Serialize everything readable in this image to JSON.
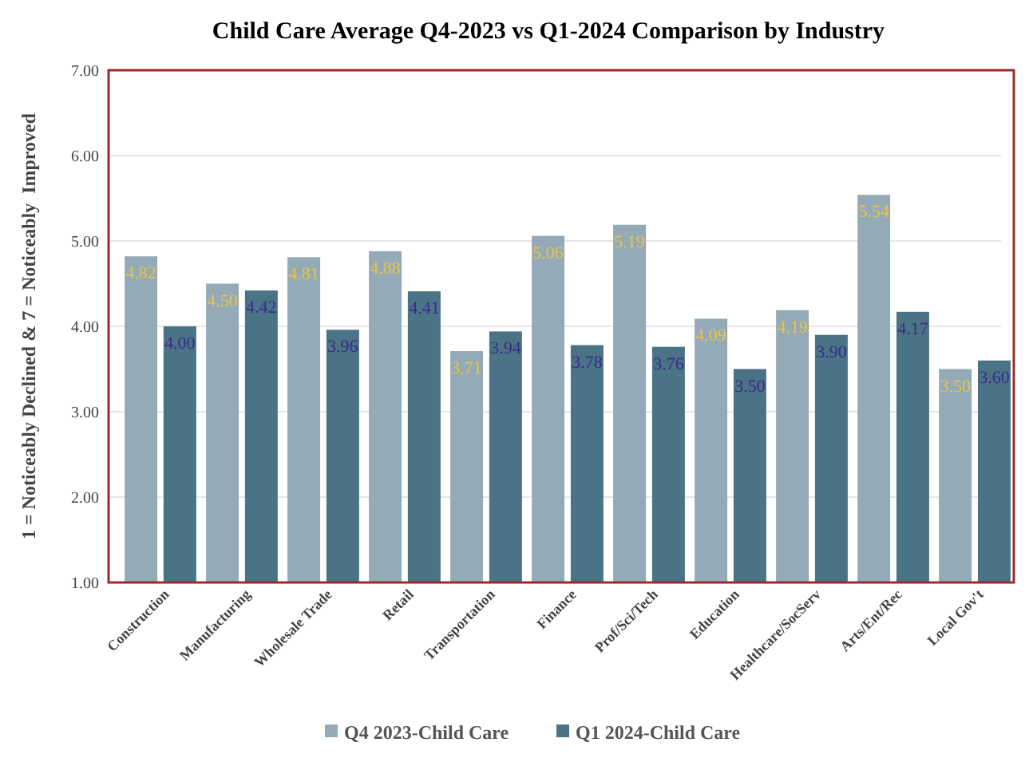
{
  "chart_data": {
    "type": "bar",
    "title": "Child Care Average Q4-2023 vs Q1-2024 Comparison by Industry",
    "ylabel": "1 = Noticeably Declined & 7 = Noticeably  Improved",
    "categories": [
      "Construction",
      "Manufacturing",
      "Wholesale Trade",
      "Retail",
      "Transportation",
      "Finance",
      "Prof/Sci/Tech",
      "Education",
      "Healthcare/SocServ",
      "Arts/Ent/Rec",
      "Local Gov't"
    ],
    "series": [
      {
        "name": "Q4 2023-Child Care",
        "color": "#94aab6",
        "values": [
          4.82,
          4.5,
          4.81,
          4.88,
          3.71,
          5.06,
          5.19,
          4.09,
          4.19,
          5.54,
          3.5
        ],
        "value_labels": [
          "4.82",
          "4.50",
          "4.81",
          "4.88",
          "3.71",
          "5.06",
          "5.19",
          "4.09",
          "4.19",
          "5.54",
          "3.50"
        ]
      },
      {
        "name": "Q1 2024-Child Care",
        "color": "#4a7385",
        "values": [
          4.0,
          4.42,
          3.96,
          4.41,
          3.94,
          3.78,
          3.76,
          3.5,
          3.9,
          4.17,
          3.6
        ],
        "value_labels": [
          "4.00",
          "4.42",
          "3.96",
          "4.41",
          "3.94",
          "3.78",
          "3.76",
          "3.50",
          "3.90",
          "4.17",
          "3.60"
        ]
      }
    ],
    "ylim": [
      1,
      7
    ],
    "yticks": [
      {
        "value": 1,
        "label": "1.00"
      },
      {
        "value": 2,
        "label": "2.00"
      },
      {
        "value": 3,
        "label": "3.00"
      },
      {
        "value": 4,
        "label": "4.00"
      },
      {
        "value": 5,
        "label": "5.00"
      },
      {
        "value": 6,
        "label": "6.00"
      },
      {
        "value": 7,
        "label": "7.00"
      }
    ],
    "grid": "y",
    "legend": "bottom"
  }
}
